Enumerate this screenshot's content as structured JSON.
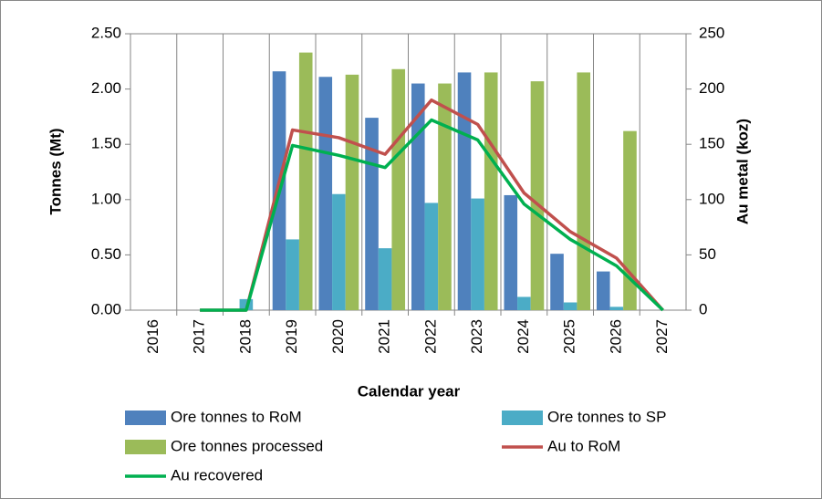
{
  "chart_data": {
    "type": "combo",
    "x_label": "Calendar year",
    "y_label": "Tonnes (Mt)",
    "y2_label": "Au metal (koz)",
    "categories": [
      "2016",
      "2017",
      "2018",
      "2019",
      "2020",
      "2021",
      "2022",
      "2023",
      "2024",
      "2025",
      "2026",
      "2027"
    ],
    "series": [
      {
        "name": "Ore tonnes to RoM",
        "type": "bar",
        "color": "#4f81bd",
        "values": [
          0,
          0,
          0,
          2.16,
          2.11,
          1.74,
          2.05,
          2.15,
          1.04,
          0.51,
          0.35,
          0
        ]
      },
      {
        "name": "Ore tonnes to SP",
        "type": "bar",
        "color": "#4bacc6",
        "values": [
          0,
          0,
          0.1,
          0.64,
          1.05,
          0.56,
          0.97,
          1.01,
          0.12,
          0.07,
          0.03,
          0
        ]
      },
      {
        "name": "Ore tonnes processed",
        "type": "bar",
        "color": "#9bbb59",
        "values": [
          0,
          0,
          0,
          2.33,
          2.13,
          2.18,
          2.05,
          2.15,
          2.07,
          2.15,
          1.62,
          0
        ]
      },
      {
        "name": "Au to RoM",
        "type": "line",
        "axis": "y2",
        "color": "#c0504d",
        "values": [
          null,
          0,
          0,
          163,
          156,
          141,
          190,
          168,
          106,
          71,
          47,
          0
        ]
      },
      {
        "name": "Au recovered",
        "type": "line",
        "axis": "y2",
        "color": "#00b050",
        "values": [
          null,
          0,
          0,
          149,
          140,
          129,
          172,
          154,
          96,
          64,
          40,
          0
        ]
      }
    ],
    "ylim": [
      0,
      2.5
    ],
    "yticks": [
      {
        "value": 0,
        "label": "0.00"
      },
      {
        "value": 0.5,
        "label": "0.50"
      },
      {
        "value": 1,
        "label": "1.00"
      },
      {
        "value": 1.5,
        "label": "1.50"
      },
      {
        "value": 2,
        "label": "2.00"
      },
      {
        "value": 2.5,
        "label": "2.50"
      }
    ],
    "y2lim": [
      0,
      250
    ],
    "y2ticks": [
      0,
      50,
      100,
      150,
      200,
      250
    ],
    "legend": "bottom"
  }
}
